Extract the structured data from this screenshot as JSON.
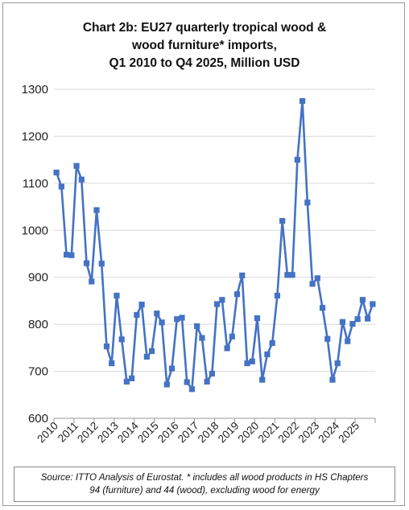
{
  "chart_data": {
    "type": "line",
    "title": "Chart 2b: EU27 quarterly tropical wood & wood furniture* imports, Q1 2010 to Q4 2025, Million USD",
    "title_lines": [
      "Chart 2b: EU27 quarterly tropical wood &",
      "wood furniture* imports,",
      "Q1 2010 to Q4 2025, Million USD"
    ],
    "xlabel": "",
    "ylabel": "",
    "ylim": [
      600,
      1300
    ],
    "yticks": [
      600,
      700,
      800,
      900,
      1000,
      1100,
      1200,
      1300
    ],
    "year_labels": [
      "2010",
      "2011",
      "2012",
      "2013",
      "2014",
      "2015",
      "2016",
      "2017",
      "2018",
      "2019",
      "2020",
      "2021",
      "2022",
      "2023",
      "2024",
      "2025"
    ],
    "grid": true,
    "legend": "none",
    "color": "#4472C4",
    "marker": "square",
    "series": [
      {
        "values": [
          1123,
          1093,
          948,
          947,
          1137,
          1108,
          930,
          891,
          1043,
          929,
          753,
          717,
          861,
          768,
          678,
          685,
          820,
          842,
          731,
          743,
          823,
          804,
          672,
          706,
          811,
          814,
          677,
          662,
          796,
          771,
          678,
          695,
          843,
          852,
          749,
          774,
          864,
          904,
          717,
          721,
          813,
          682,
          736,
          760,
          861,
          1020,
          905,
          905,
          1150,
          1275,
          1059,
          886,
          898,
          835,
          769,
          682,
          717,
          805,
          764,
          801,
          811,
          852,
          812,
          843
        ]
      }
    ]
  },
  "source_lines": [
    "Source: ITTO Analysis of Eurostat. * includes all wood products in HS Chapters",
    "94 (furniture) and 44 (wood), excluding wood for energy"
  ]
}
